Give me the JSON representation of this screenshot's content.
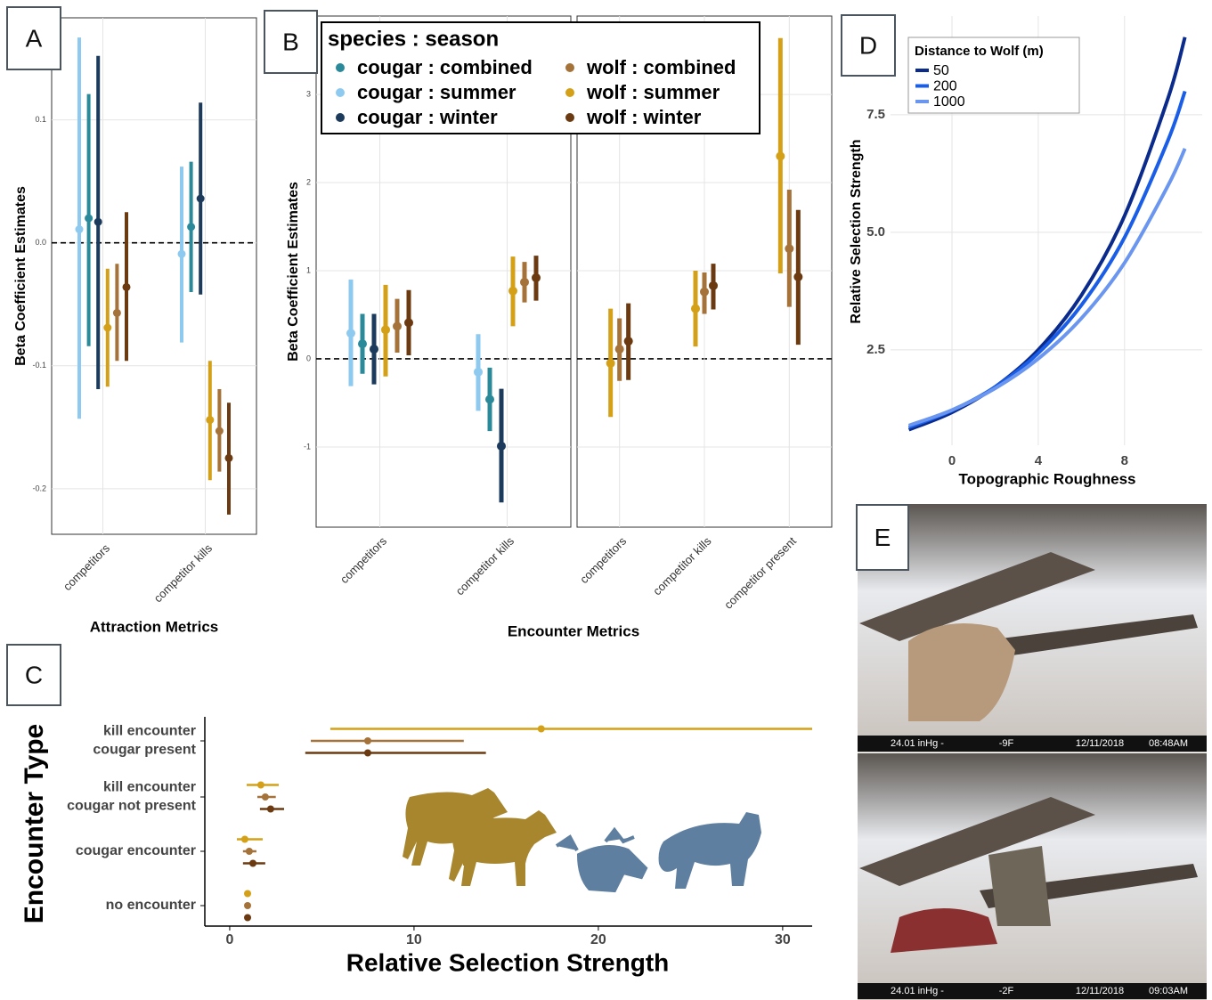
{
  "chart_data": [
    {
      "panel": "A",
      "type": "pointrange",
      "x_label": "Attraction Metrics",
      "y_label": "Beta Coefficient Estimates",
      "categories": [
        "competitors",
        "competitor kills"
      ],
      "ylim": [
        -0.237,
        0.183
      ],
      "yticks": [
        -0.2,
        -0.1,
        {
          "value": 0,
          "label": "0.0"
        },
        0.1
      ],
      "grid": true,
      "reference_line": 0,
      "series": [
        {
          "color": "#2a8a9a",
          "values": [
            0.02,
            0.013
          ],
          "lower": [
            -0.084,
            -0.04
          ],
          "upper": [
            0.121,
            0.066
          ]
        },
        {
          "color": "#8ecaf0",
          "values": [
            0.011,
            -0.009
          ],
          "lower": [
            -0.143,
            -0.081
          ],
          "upper": [
            0.167,
            0.062
          ]
        },
        {
          "color": "#1b3a5c",
          "values": [
            0.017,
            0.036
          ],
          "lower": [
            -0.119,
            -0.042
          ],
          "upper": [
            0.152,
            0.114
          ]
        },
        {
          "color": "#a5733a",
          "values": [
            -0.057,
            -0.153
          ],
          "lower": [
            -0.096,
            -0.186
          ],
          "upper": [
            -0.017,
            -0.119
          ]
        },
        {
          "color": "#d4a017",
          "values": [
            -0.069,
            -0.144
          ],
          "lower": [
            -0.117,
            -0.193
          ],
          "upper": [
            -0.021,
            -0.096
          ]
        },
        {
          "color": "#6b3a10",
          "values": [
            -0.036,
            -0.175
          ],
          "lower": [
            -0.096,
            -0.221
          ],
          "upper": [
            0.025,
            -0.13
          ]
        }
      ]
    },
    {
      "panel": "B",
      "type": "pointrange",
      "x_label": "Encounter Metrics",
      "y_label": "Beta Coefficient Estimates",
      "ylim": [
        -1.91,
        3.89
      ],
      "yticks": [
        -1,
        0,
        1,
        2,
        3
      ],
      "grid": true,
      "reference_line": 0,
      "legend": {
        "title": "species : season",
        "entries": [
          {
            "name": "cougar : combined",
            "color": "#2a8a9a"
          },
          {
            "name": "cougar : summer",
            "color": "#8ecaf0"
          },
          {
            "name": "cougar : winter",
            "color": "#1b3a5c"
          },
          {
            "name": "wolf : combined",
            "color": "#a5733a"
          },
          {
            "name": "wolf : summer",
            "color": "#d4a017"
          },
          {
            "name": "wolf : winter",
            "color": "#6b3a10"
          }
        ]
      },
      "facets": [
        {
          "categories": [
            "competitors",
            "competitor kills"
          ],
          "series": [
            {
              "values": [
                0.17,
                -0.46
              ],
              "lower": [
                -0.17,
                -0.82
              ],
              "upper": [
                0.51,
                -0.1
              ]
            },
            {
              "values": [
                0.29,
                -0.15
              ],
              "lower": [
                -0.31,
                -0.59
              ],
              "upper": [
                0.9,
                0.28
              ]
            },
            {
              "values": [
                0.11,
                -0.99
              ],
              "lower": [
                -0.29,
                -1.63
              ],
              "upper": [
                0.51,
                -0.34
              ]
            },
            {
              "values": [
                0.37,
                0.87
              ],
              "lower": [
                0.07,
                0.64
              ],
              "upper": [
                0.68,
                1.1
              ]
            },
            {
              "values": [
                0.33,
                0.77
              ],
              "lower": [
                -0.2,
                0.37
              ],
              "upper": [
                0.84,
                1.16
              ]
            },
            {
              "values": [
                0.41,
                0.92
              ],
              "lower": [
                0.04,
                0.66
              ],
              "upper": [
                0.78,
                1.17
              ]
            }
          ]
        },
        {
          "categories": [
            "competitors",
            "competitor kills",
            "competitor present"
          ],
          "series": [
            {
              "values": [
                null,
                null,
                null
              ],
              "lower": [
                null,
                null,
                null
              ],
              "upper": [
                null,
                null,
                null
              ]
            },
            {
              "values": [
                null,
                null,
                null
              ],
              "lower": [
                null,
                null,
                null
              ],
              "upper": [
                null,
                null,
                null
              ]
            },
            {
              "values": [
                null,
                null,
                null
              ],
              "lower": [
                null,
                null,
                null
              ],
              "upper": [
                null,
                null,
                null
              ]
            },
            {
              "values": [
                0.11,
                0.76,
                1.25
              ],
              "lower": [
                -0.25,
                0.51,
                0.59
              ],
              "upper": [
                0.46,
                0.98,
                1.92
              ]
            },
            {
              "values": [
                -0.05,
                0.57,
                2.3
              ],
              "lower": [
                -0.66,
                0.14,
                0.97
              ],
              "upper": [
                0.57,
                1.0,
                3.64
              ]
            },
            {
              "values": [
                0.2,
                0.83,
                0.93
              ],
              "lower": [
                -0.24,
                0.56,
                0.16
              ],
              "upper": [
                0.63,
                1.08,
                1.69
              ]
            }
          ]
        }
      ]
    },
    {
      "panel": "C",
      "type": "hpointrange",
      "x_label": "Relative Selection Strength",
      "y_label": "Encounter Type",
      "categories": [
        [
          "kill encounter",
          "cougar present"
        ],
        [
          "kill encounter",
          "cougar not present"
        ],
        [
          "cougar encounter"
        ],
        [
          "no encounter"
        ]
      ],
      "xlim": [
        -1.35,
        31.6
      ],
      "xticks": [
        0,
        10,
        20,
        30
      ],
      "series": [
        {
          "color": "#d4a017",
          "values": [
            16.9,
            1.69,
            0.82,
            0.97
          ],
          "lower": [
            5.46,
            0.92,
            0.39,
            0.97
          ],
          "upper": [
            31.6,
            2.66,
            1.79,
            0.97
          ]
        },
        {
          "color": "#a5733a",
          "values": [
            7.49,
            1.93,
            1.06,
            0.97
          ],
          "lower": [
            4.4,
            1.5,
            0.72,
            0.97
          ],
          "upper": [
            12.7,
            2.5,
            1.45,
            0.97
          ]
        },
        {
          "color": "#6b3a10",
          "values": [
            7.49,
            2.22,
            1.26,
            0.97
          ],
          "lower": [
            4.1,
            1.64,
            0.72,
            0.97
          ],
          "upper": [
            13.9,
            2.95,
            1.93,
            0.97
          ]
        }
      ]
    },
    {
      "panel": "D",
      "type": "line",
      "x_label": "Topographic Roughness",
      "y_label": "Relative Selection Strength",
      "x": [
        -2,
        0,
        2,
        4,
        6,
        8,
        10,
        10.8
      ],
      "xlim": [
        -2.85,
        11.6
      ],
      "ylim": [
        0.47,
        9.6
      ],
      "xticks": [
        0,
        4,
        8
      ],
      "yticks": [
        2.5,
        {
          "value": 5,
          "label": "5.0"
        },
        7.5
      ],
      "grid": true,
      "legend": {
        "title": "Distance to Wolf (m)"
      },
      "series": [
        {
          "name": "50",
          "color": "#0a2a8c",
          "values": [
            0.8,
            1.17,
            1.71,
            2.5,
            3.66,
            5.35,
            7.83,
            9.15
          ]
        },
        {
          "name": "200",
          "color": "#1a5ee8",
          "values": [
            0.85,
            1.21,
            1.71,
            2.43,
            3.45,
            4.89,
            6.94,
            8.0
          ]
        },
        {
          "name": "1000",
          "color": "#6a96f0",
          "values": [
            0.89,
            1.22,
            1.68,
            2.31,
            3.17,
            4.35,
            5.98,
            6.78
          ]
        }
      ]
    }
  ],
  "photos": {
    "panel": "E",
    "stamps": [
      [
        "24.01 inHg -",
        "-9F",
        "12/11/2018",
        "08:48AM"
      ],
      [
        "24.01 inHg -",
        "-2F",
        "12/11/2018",
        "09:03AM"
      ]
    ]
  }
}
